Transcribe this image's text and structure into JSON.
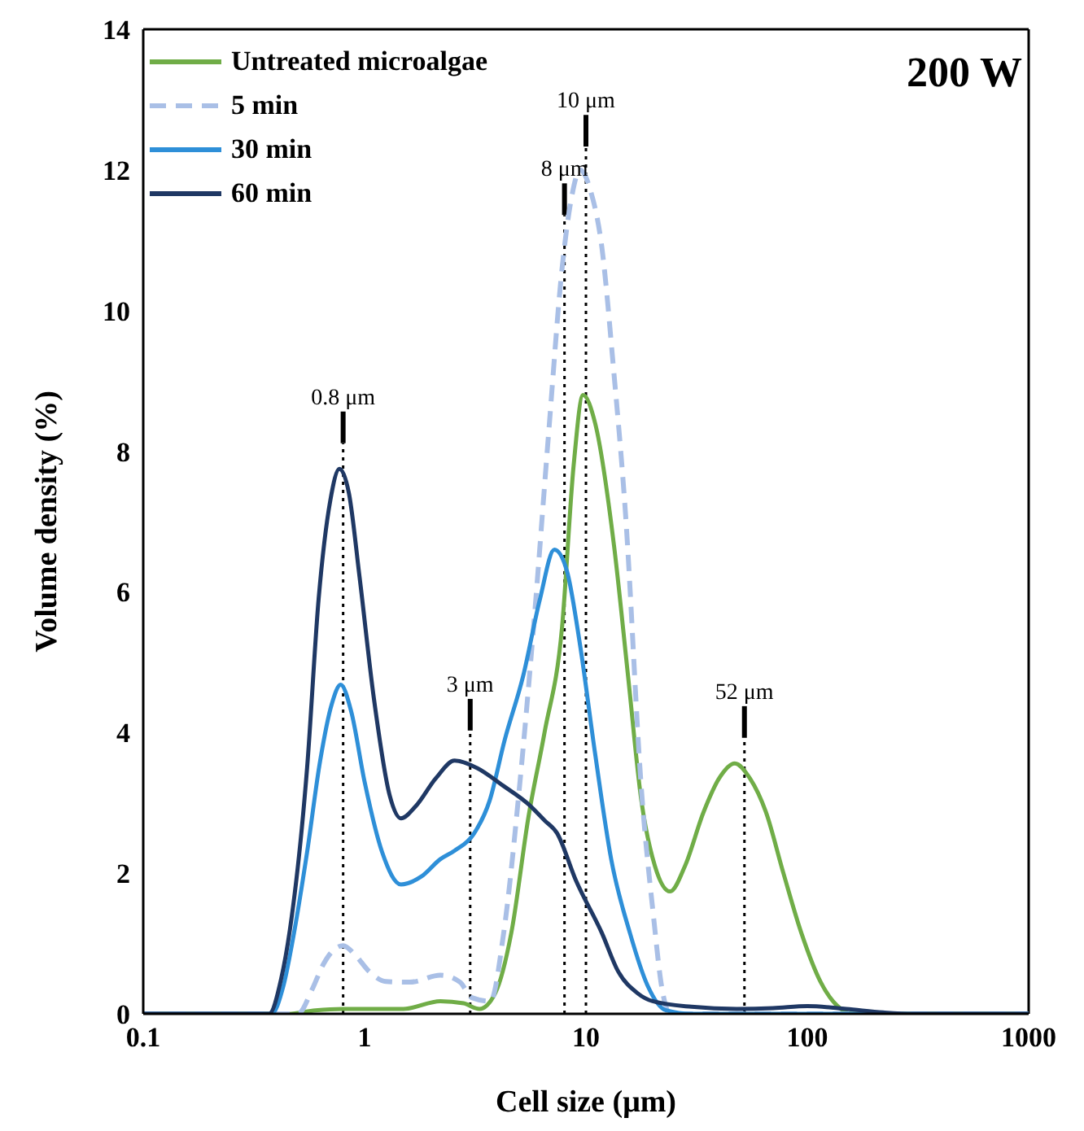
{
  "chart_data": {
    "type": "line",
    "xlabel": "Cell size (μm)",
    "ylabel": "Volume density (%)",
    "annotations": [
      "200 W"
    ],
    "log": "x",
    "xlim": [
      0.1,
      1000
    ],
    "xticks": [
      0.1,
      1,
      10,
      100,
      1000
    ],
    "ylim": [
      0,
      14
    ],
    "yticks": [
      0,
      2,
      4,
      6,
      8,
      10,
      12,
      14
    ],
    "legend": "top left",
    "marker": "none",
    "ref_lines": [
      {
        "axis": "x",
        "value": 0.8,
        "label": "0.8 μm",
        "line_style": "dotted",
        "color": "#000000"
      },
      {
        "axis": "x",
        "value": 3,
        "label": "3 μm",
        "line_style": "dotted",
        "color": "#000000"
      },
      {
        "axis": "x",
        "value": 8,
        "label": "8 μm",
        "line_style": "dotted",
        "color": "#000000"
      },
      {
        "axis": "x",
        "value": 10,
        "label": "10 μm",
        "line_style": "dotted",
        "color": "#000000"
      },
      {
        "axis": "x",
        "value": 52,
        "label": "52 μm",
        "line_style": "dotted",
        "color": "#000000"
      }
    ],
    "series": [
      {
        "name": "Untreated microalgae",
        "color": "#70ad47",
        "line_style": "solid",
        "x": [
          0.1,
          0.45,
          0.6,
          0.8,
          1.0,
          1.5,
          2.2,
          2.8,
          3.3,
          3.9,
          4.6,
          5.5,
          6.5,
          7.8,
          8.8,
          9.7,
          11,
          13.4,
          15.5,
          17.8,
          20.5,
          24,
          28,
          34,
          40,
          47,
          55,
          65,
          78,
          94,
          115,
          142,
          160,
          1000
        ],
        "values": [
          0,
          0,
          0.05,
          0.07,
          0.07,
          0.07,
          0.18,
          0.15,
          0.07,
          0.3,
          1.15,
          2.8,
          4.0,
          5.5,
          7.8,
          8.8,
          8.4,
          6.65,
          4.8,
          3.03,
          2.1,
          1.74,
          2.1,
          2.87,
          3.35,
          3.56,
          3.35,
          2.87,
          2.0,
          1.15,
          0.45,
          0.07,
          0,
          0
        ]
      },
      {
        "name": "5 min",
        "color": "#a9bfe6",
        "line_style": "dashed",
        "x": [
          0.1,
          0.5,
          0.58,
          0.65,
          0.72,
          0.8,
          0.9,
          1.05,
          1.25,
          1.6,
          2.2,
          2.7,
          3.05,
          3.7,
          4.25,
          5.0,
          5.8,
          6.8,
          7.8,
          8.6,
          9.4,
          10.5,
          11.8,
          13.3,
          15.1,
          17.8,
          20.2,
          22,
          24,
          1000
        ],
        "values": [
          0,
          0,
          0.35,
          0.7,
          0.9,
          0.97,
          0.85,
          0.6,
          0.46,
          0.45,
          0.55,
          0.45,
          0.23,
          0.18,
          1.15,
          3.2,
          5.5,
          8.3,
          10.6,
          11.6,
          12.0,
          11.7,
          10.9,
          9.2,
          7.1,
          3.2,
          1.38,
          0.38,
          0,
          0
        ]
      },
      {
        "name": "30 min",
        "color": "#2e8fd8",
        "line_style": "solid",
        "x": [
          0.1,
          0.38,
          0.43,
          0.48,
          0.55,
          0.63,
          0.71,
          0.78,
          0.87,
          1.0,
          1.2,
          1.46,
          1.8,
          2.2,
          2.55,
          3.1,
          3.67,
          4.3,
          5.2,
          6.2,
          7.2,
          8.2,
          9.4,
          11,
          13,
          15.8,
          19,
          23,
          30,
          1000
        ],
        "values": [
          0,
          0,
          0.4,
          1.15,
          2.3,
          3.6,
          4.4,
          4.68,
          4.3,
          3.3,
          2.3,
          1.84,
          1.95,
          2.2,
          2.32,
          2.55,
          3.03,
          3.9,
          4.8,
          5.9,
          6.6,
          6.3,
          5.25,
          3.7,
          2.2,
          1.15,
          0.4,
          0.05,
          0,
          0
        ]
      },
      {
        "name": "60 min",
        "color": "#1f3864",
        "line_style": "solid",
        "x": [
          0.1,
          0.37,
          0.42,
          0.46,
          0.55,
          0.62,
          0.7,
          0.77,
          0.85,
          0.95,
          1.1,
          1.3,
          1.46,
          1.7,
          2.1,
          2.55,
          3.2,
          4.2,
          5.5,
          6.5,
          7.4,
          9,
          11.8,
          14,
          17,
          20,
          30,
          48,
          70,
          100,
          150,
          220,
          300,
          1000
        ],
        "values": [
          0,
          0,
          0.5,
          1.2,
          3.5,
          5.9,
          7.3,
          7.75,
          7.4,
          6.2,
          4.5,
          3.1,
          2.78,
          2.95,
          3.35,
          3.6,
          3.5,
          3.25,
          2.98,
          2.75,
          2.57,
          1.9,
          1.15,
          0.6,
          0.3,
          0.18,
          0.1,
          0.07,
          0.08,
          0.11,
          0.07,
          0.02,
          0,
          0
        ]
      }
    ]
  }
}
